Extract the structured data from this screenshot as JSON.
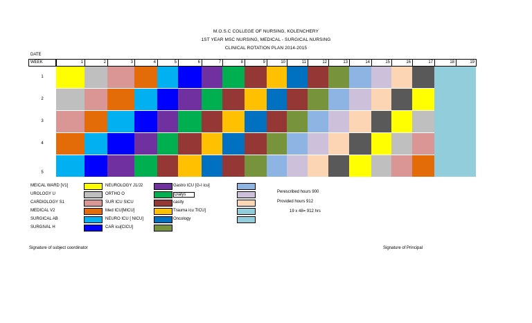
{
  "header": {
    "line1": "M.O.S.C COLLEGE OF NURSING, KOLENCHERY",
    "line2": "1ST YEAR MSC NURSING, MEDICAL - SURGICAL NURSING",
    "line3": "CLINICAL ROTATION PLAN 2014-2015"
  },
  "date_label": "DATE",
  "table": {
    "week_label": "WEEK",
    "weeks": [
      "1",
      "2",
      "3",
      "4",
      "5",
      "6",
      "7",
      "8",
      "9",
      "10",
      "11",
      "12",
      "13",
      "14",
      "15",
      "16",
      "17",
      "18",
      "19"
    ],
    "row_labels": [
      "1",
      "2",
      "3",
      "4",
      "5"
    ],
    "colors": {
      "YE": "#ffff00",
      "GR": "#bfbfbf",
      "PK": "#da9694",
      "OR": "#e36c09",
      "CY": "#00b0f0",
      "BL": "#0000ff",
      "PU": "#7030a0",
      "GN": "#00b050",
      "MR": "#953735",
      "GO": "#ffc000",
      "DB": "#0070c0",
      "OL": "#77933c",
      "LB": "#8db4e2",
      "LV": "#ccc0da",
      "PE": "#fcd5b4",
      "DG": "#595959",
      "TE": "#92cddc"
    },
    "rows": [
      [
        "YE",
        "GR",
        "PK",
        "OR",
        "CY",
        "BL",
        "PU",
        "GN",
        "MR",
        "GO",
        "DB",
        "MR",
        "OL",
        "LB",
        "LV",
        "PE",
        "DG"
      ],
      [
        "GR",
        "PK",
        "OR",
        "CY",
        "BL",
        "PU",
        "GN",
        "MR",
        "GO",
        "DB",
        "MR",
        "OL",
        "LB",
        "LV",
        "PE",
        "DG",
        "YE"
      ],
      [
        "PK",
        "OR",
        "CY",
        "BL",
        "PU",
        "GN",
        "MR",
        "GO",
        "DB",
        "MR",
        "OL",
        "LB",
        "LV",
        "PE",
        "DG",
        "YE",
        "GR"
      ],
      [
        "OR",
        "CY",
        "BL",
        "PU",
        "GN",
        "MR",
        "GO",
        "DB",
        "MR",
        "OL",
        "LB",
        "LV",
        "PE",
        "DG",
        "YE",
        "GR",
        "PK"
      ],
      [
        "CY",
        "BL",
        "PU",
        "GN",
        "MR",
        "GO",
        "DB",
        "MR",
        "OL",
        "LB",
        "LV",
        "PE",
        "DG",
        "YE",
        "GR",
        "PK",
        "OR"
      ]
    ],
    "reserved_color": "TE"
  },
  "legend": {
    "col1": [
      {
        "label": "MEICAL WARD [V1]",
        "color": "YE"
      },
      {
        "label": "UROLOGY  U",
        "color": "GR"
      },
      {
        "label": "CARDIOLOGY S1",
        "color": "PK"
      },
      {
        "label": "MEDICAL V2",
        "color": "OR"
      },
      {
        "label": "SURGICAL AB",
        "color": "CY"
      },
      {
        "label": "SURGIVAL H",
        "color": "BL"
      }
    ],
    "col2": [
      {
        "label": "NEUROLOGY J1/J2",
        "color": "PU"
      },
      {
        "label": "ORTHO    O",
        "color": "GN"
      },
      {
        "label": "SUR ICU  SICU",
        "color": "MR"
      },
      {
        "label": "Med ICU[MICU]",
        "color": "GO"
      },
      {
        "label": "NEURO ICU [ NICU]",
        "color": "DB"
      },
      {
        "label": "CAR icu[CICU]",
        "color": "OL"
      }
    ],
    "col3": [
      {
        "label": "Gastro ICU [G-I icu]",
        "color": "LB",
        "boxed": false
      },
      {
        "label": "Dialys",
        "color": "LV",
        "boxed": true
      },
      {
        "label": "casity",
        "color": "PE",
        "boxed": false
      },
      {
        "label": "Trauma icu TICU]",
        "color": "TE",
        "boxed": false
      },
      {
        "label": "Oncology",
        "color": "TE",
        "boxed": false
      }
    ]
  },
  "hours": {
    "prescribed": "Perescribed hours  900",
    "provided": "Provided hours  912",
    "calc": "19 x 48= 912 hrs"
  },
  "footer": {
    "left": "Signature of subject coordinator",
    "right": "Signature of Principal"
  }
}
